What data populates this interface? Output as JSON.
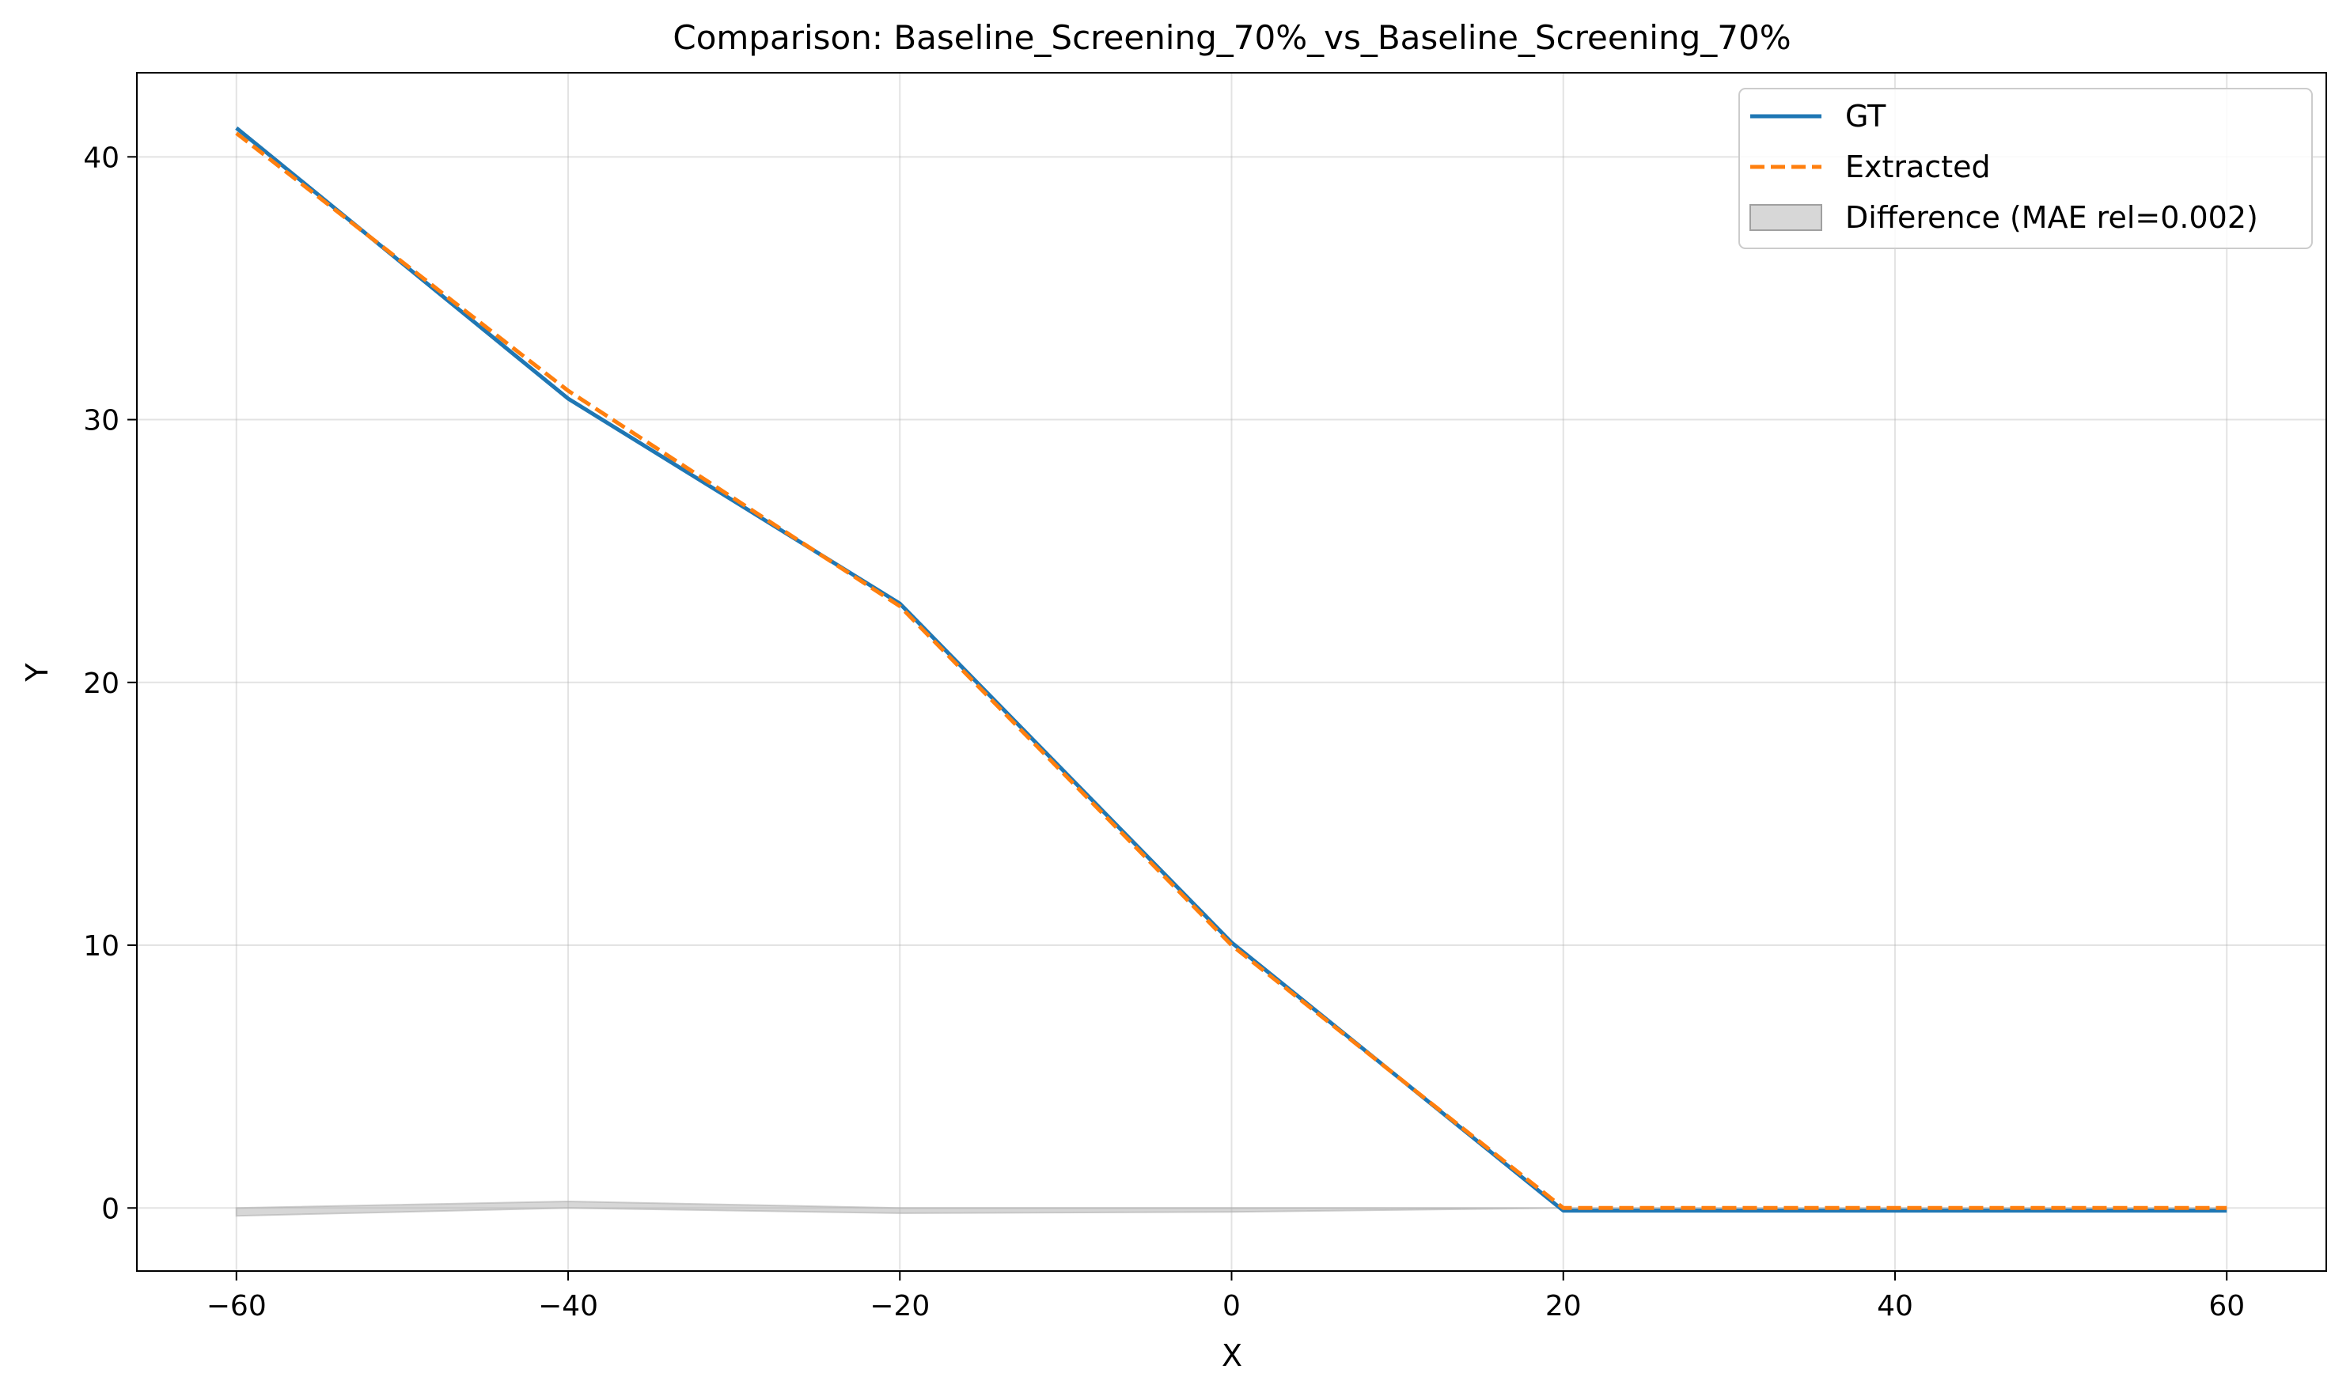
{
  "chart_data": {
    "type": "line",
    "title": "Comparison: Baseline_Screening_70%_vs_Baseline_Screening_70%",
    "xlabel": "X",
    "ylabel": "Y",
    "xlim": [
      -66,
      66
    ],
    "ylim": [
      -2.4,
      43.2
    ],
    "xticks": [
      -60,
      -40,
      -20,
      0,
      20,
      40,
      60
    ],
    "yticks": [
      0,
      10,
      20,
      30,
      40
    ],
    "xtick_labels": [
      "−60",
      "−40",
      "−20",
      "0",
      "20",
      "40",
      "60"
    ],
    "ytick_labels": [
      "0",
      "10",
      "20",
      "30",
      "40"
    ],
    "grid": true,
    "legend_position": "top-right",
    "series": [
      {
        "name": "GT",
        "style": "solid",
        "color": "#1f77b4",
        "x": [
          -60,
          -40,
          -20,
          0,
          20,
          60
        ],
        "y": [
          41.1,
          30.8,
          23.0,
          10.1,
          -0.1,
          -0.1
        ]
      },
      {
        "name": "Extracted",
        "style": "dashed",
        "color": "#ff7f0e",
        "x": [
          -60,
          -40,
          -20,
          0,
          20,
          60
        ],
        "y": [
          40.9,
          31.1,
          22.9,
          10.0,
          0.0,
          0.0
        ]
      }
    ],
    "difference": {
      "name": "Difference (MAE rel=0.002)",
      "color": "#b0b0b0",
      "x": [
        -60,
        -40,
        -20,
        0,
        20,
        60
      ],
      "lower": [
        -0.3,
        0.0,
        -0.2,
        -0.15,
        0.0,
        0.0
      ],
      "upper": [
        0.0,
        0.25,
        0.0,
        0.0,
        0.0,
        0.0
      ]
    }
  }
}
